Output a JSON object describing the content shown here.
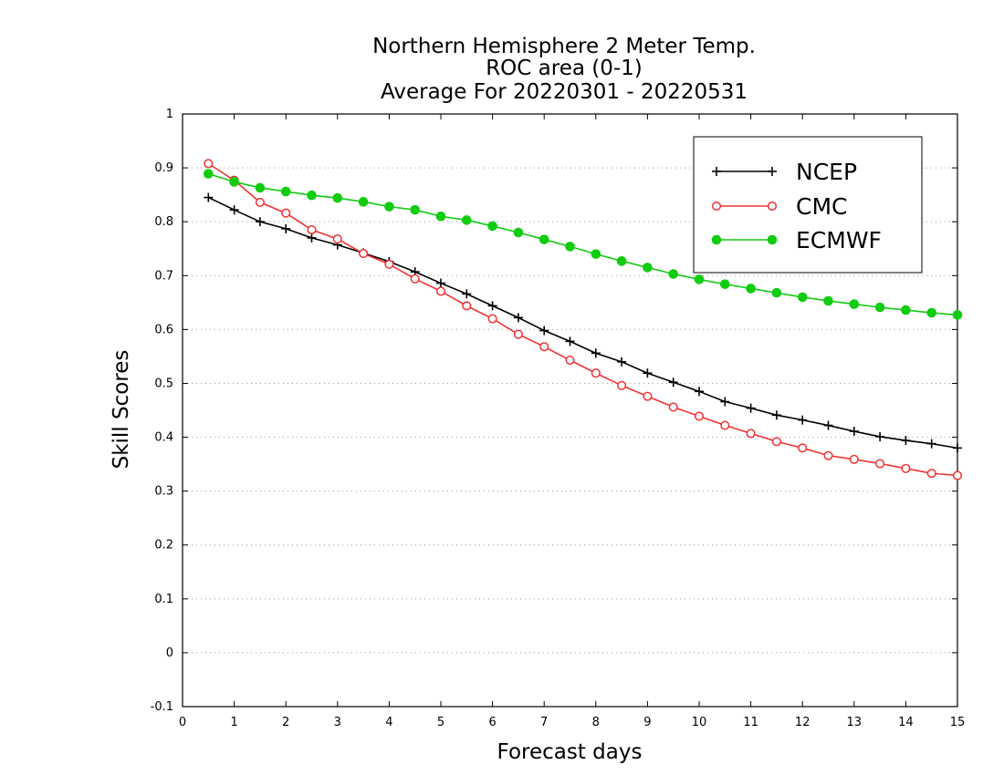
{
  "chart_data": {
    "type": "line",
    "title": [
      "Northern Hemisphere 2 Meter Temp.",
      "ROC area (0-1)",
      "Average For 20220301 - 20220531"
    ],
    "xlabel": "Forecast days",
    "ylabel": "Skill Scores",
    "xlim": [
      0,
      15
    ],
    "ylim": [
      -0.1,
      1
    ],
    "x_ticks": [
      0,
      1,
      2,
      3,
      4,
      5,
      6,
      7,
      8,
      9,
      10,
      11,
      12,
      13,
      14,
      15
    ],
    "x_tick_labels": [
      "0",
      "1",
      "2",
      "3",
      "4",
      "5",
      "6",
      "7",
      "8",
      "9",
      "10",
      "11",
      "12",
      "13",
      "14",
      "15"
    ],
    "y_ticks": [
      -0.1,
      0,
      0.1,
      0.2,
      0.3,
      0.4,
      0.5,
      0.6,
      0.7,
      0.8,
      0.9,
      1
    ],
    "y_tick_labels": [
      "-0.1",
      "0",
      "0.1",
      "0.2",
      "0.3",
      "0.4",
      "0.5",
      "0.6",
      "0.7",
      "0.8",
      "0.9",
      "1"
    ],
    "grid": "horizontal dotted",
    "legend_position": "top-right",
    "x": [
      0.5,
      1,
      1.5,
      2,
      2.5,
      3,
      3.5,
      4,
      4.5,
      5,
      5.5,
      6,
      6.5,
      7,
      7.5,
      8,
      8.5,
      9,
      9.5,
      10,
      10.5,
      11,
      11.5,
      12,
      12.5,
      13,
      13.5,
      14,
      14.5,
      15
    ],
    "series": [
      {
        "name": "NCEP",
        "color": "#000000",
        "marker": "plus",
        "values": [
          0.845,
          0.822,
          0.8,
          0.787,
          0.77,
          0.757,
          0.742,
          0.726,
          0.707,
          0.686,
          0.666,
          0.644,
          0.622,
          0.598,
          0.578,
          0.556,
          0.54,
          0.519,
          0.502,
          0.485,
          0.466,
          0.454,
          0.441,
          0.432,
          0.422,
          0.411,
          0.401,
          0.394,
          0.388,
          0.38
        ]
      },
      {
        "name": "CMC",
        "color": "#ee3333",
        "marker": "open-circle",
        "values": [
          0.908,
          0.877,
          0.836,
          0.816,
          0.785,
          0.768,
          0.741,
          0.721,
          0.694,
          0.671,
          0.644,
          0.62,
          0.591,
          0.568,
          0.543,
          0.519,
          0.496,
          0.476,
          0.456,
          0.439,
          0.422,
          0.407,
          0.392,
          0.38,
          0.366,
          0.359,
          0.351,
          0.342,
          0.333,
          0.329
        ]
      },
      {
        "name": "ECMWF",
        "color": "#11cc11",
        "marker": "filled-circle",
        "values": [
          0.889,
          0.874,
          0.863,
          0.856,
          0.849,
          0.844,
          0.837,
          0.828,
          0.822,
          0.81,
          0.803,
          0.792,
          0.78,
          0.767,
          0.754,
          0.74,
          0.727,
          0.715,
          0.703,
          0.693,
          0.684,
          0.676,
          0.668,
          0.66,
          0.653,
          0.647,
          0.641,
          0.636,
          0.631,
          0.627
        ]
      }
    ]
  }
}
